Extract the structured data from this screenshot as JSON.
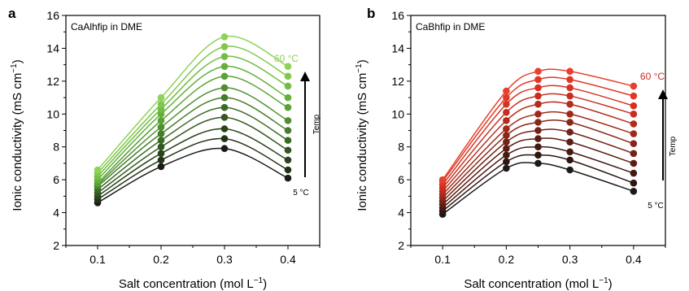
{
  "chart_data": [
    {
      "panel_label": "a",
      "type": "line",
      "title": "CaAlhfip in DME",
      "xlabel": "Salt concentration (mol L",
      "xlabel_sup": "−1",
      "xlabel_tail": ")",
      "ylabel": "Ionic conductivity (mS cm",
      "ylabel_sup": "−1",
      "ylabel_tail": ")",
      "xlim": [
        0.05,
        0.45
      ],
      "ylim": [
        2,
        16
      ],
      "xticks": [
        "0.1",
        "0.2",
        "0.3",
        "0.4"
      ],
      "xtick_values": [
        0.1,
        0.2,
        0.3,
        0.4
      ],
      "yticks": [
        "2",
        "4",
        "6",
        "8",
        "10",
        "12",
        "14",
        "16"
      ],
      "ytick_values": [
        2,
        4,
        6,
        8,
        10,
        12,
        14,
        16
      ],
      "x": [
        0.1,
        0.2,
        0.3,
        0.4
      ],
      "series": [
        {
          "color": "#1a1a1a",
          "values": [
            4.6,
            6.8,
            7.9,
            6.1
          ]
        },
        {
          "color": "#223318",
          "values": [
            4.8,
            7.2,
            8.5,
            6.6
          ]
        },
        {
          "color": "#2a451c",
          "values": [
            5.0,
            7.6,
            9.1,
            7.2
          ]
        },
        {
          "color": "#325720",
          "values": [
            5.2,
            8.0,
            9.8,
            7.8
          ]
        },
        {
          "color": "#3b6a25",
          "values": [
            5.4,
            8.4,
            10.4,
            8.4
          ]
        },
        {
          "color": "#457d2a",
          "values": [
            5.6,
            8.8,
            11.0,
            9.0
          ]
        },
        {
          "color": "#4f8f30",
          "values": [
            5.7,
            9.2,
            11.6,
            9.6
          ]
        },
        {
          "color": "#5aa136",
          "values": [
            5.8,
            9.6,
            12.3,
            10.4
          ]
        },
        {
          "color": "#65b03c",
          "values": [
            6.0,
            10.0,
            12.9,
            11.0
          ]
        },
        {
          "color": "#72bd44",
          "values": [
            6.2,
            10.3,
            13.5,
            11.7
          ]
        },
        {
          "color": "#80c84d",
          "values": [
            6.4,
            10.6,
            14.1,
            12.3
          ]
        },
        {
          "color": "#8ed357",
          "values": [
            6.6,
            11.0,
            14.7,
            12.9
          ]
        }
      ],
      "annotation_top": "60 °C",
      "annotation_top_color": "#8ed357",
      "annotation_bottom": "5 °C",
      "arrow_label": "Temp"
    },
    {
      "panel_label": "b",
      "type": "line",
      "title": "CaBhfip in DME",
      "xlabel": "Salt concentration (mol L",
      "xlabel_sup": "−1",
      "xlabel_tail": ")",
      "ylabel": "Ionic conductivity (mS cm",
      "ylabel_sup": "−1",
      "ylabel_tail": ")",
      "xlim": [
        0.05,
        0.45
      ],
      "ylim": [
        2,
        16
      ],
      "xticks": [
        "0.1",
        "0.2",
        "0.3",
        "0.4"
      ],
      "xtick_values": [
        0.1,
        0.2,
        0.3,
        0.4
      ],
      "yticks": [
        "2",
        "4",
        "6",
        "8",
        "10",
        "12",
        "14",
        "16"
      ],
      "ytick_values": [
        2,
        4,
        6,
        8,
        10,
        12,
        14,
        16
      ],
      "x": [
        0.1,
        0.2,
        0.25,
        0.3,
        0.4
      ],
      "series": [
        {
          "color": "#1a1a1a",
          "values": [
            3.9,
            6.7,
            7.0,
            6.6,
            5.3
          ]
        },
        {
          "color": "#2e1510",
          "values": [
            4.1,
            7.1,
            7.5,
            7.2,
            5.8
          ]
        },
        {
          "color": "#451a12",
          "values": [
            4.3,
            7.5,
            8.0,
            7.7,
            6.4
          ]
        },
        {
          "color": "#5c1e14",
          "values": [
            4.5,
            7.9,
            8.5,
            8.3,
            7.0
          ]
        },
        {
          "color": "#732216",
          "values": [
            4.7,
            8.3,
            9.0,
            8.9,
            7.6
          ]
        },
        {
          "color": "#8a2618",
          "values": [
            4.9,
            8.7,
            9.5,
            9.5,
            8.2
          ]
        },
        {
          "color": "#a1291a",
          "values": [
            5.1,
            9.1,
            10.0,
            10.0,
            8.8
          ]
        },
        {
          "color": "#b52c1c",
          "values": [
            5.3,
            9.6,
            10.6,
            10.6,
            9.4
          ]
        },
        {
          "color": "#c62f1f",
          "values": [
            5.5,
            10.1,
            11.1,
            11.1,
            10.0
          ]
        },
        {
          "color": "#d43322",
          "values": [
            5.7,
            10.6,
            11.6,
            11.6,
            10.5
          ]
        },
        {
          "color": "#e03826",
          "values": [
            5.9,
            11.0,
            12.1,
            12.1,
            11.1
          ]
        },
        {
          "color": "#e8402c",
          "values": [
            6.0,
            11.4,
            12.6,
            12.6,
            11.7
          ]
        }
      ],
      "annotation_top": "60 °C",
      "annotation_top_color": "#d62a1e",
      "annotation_bottom": "5 °C",
      "arrow_label": "Temp"
    }
  ]
}
